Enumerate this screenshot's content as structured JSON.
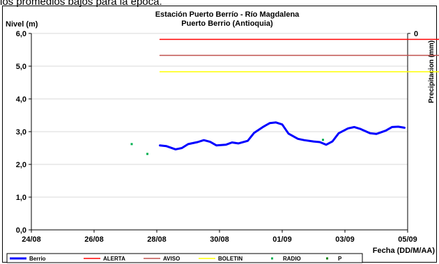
{
  "top_caption": "los promedios bajos para la época.",
  "chart_data": {
    "type": "line",
    "title": "Estación Puerto Berrío - Río Magdalena",
    "subtitle": "Puerto Berrio (Antioquia)",
    "ylabel": "Nivel (m)",
    "y2label": "Precipitacion (mm)",
    "xlabel": "Fecha (DD/M/AA)",
    "ylim": [
      0,
      6
    ],
    "yticks": [
      "0,0",
      "1,0",
      "2,0",
      "3,0",
      "4,0",
      "5,0",
      "6,0"
    ],
    "y2ticks": [
      "0"
    ],
    "xlim": [
      "24/08",
      "05/09"
    ],
    "xticks": [
      "24/08",
      "26/08",
      "28/08",
      "30/08",
      "01/09",
      "03/09",
      "05/09"
    ],
    "grid": true,
    "legend_position": "bottom",
    "series": [
      {
        "name": "Berrio",
        "color": "#0000ff",
        "style": "line",
        "points": [
          [
            28.1,
            2.58
          ],
          [
            28.3,
            2.56
          ],
          [
            28.6,
            2.46
          ],
          [
            28.8,
            2.5
          ],
          [
            29.0,
            2.62
          ],
          [
            29.3,
            2.68
          ],
          [
            29.5,
            2.74
          ],
          [
            29.7,
            2.69
          ],
          [
            29.9,
            2.58
          ],
          [
            30.2,
            2.6
          ],
          [
            30.4,
            2.67
          ],
          [
            30.6,
            2.64
          ],
          [
            30.9,
            2.72
          ],
          [
            31.1,
            2.96
          ],
          [
            31.4,
            3.15
          ],
          [
            31.6,
            3.26
          ],
          [
            31.8,
            3.28
          ],
          [
            32.0,
            3.22
          ],
          [
            32.2,
            2.94
          ],
          [
            32.5,
            2.78
          ],
          [
            32.7,
            2.74
          ],
          [
            33.0,
            2.7
          ],
          [
            33.2,
            2.68
          ],
          [
            33.4,
            2.6
          ],
          [
            33.6,
            2.7
          ],
          [
            33.8,
            2.95
          ],
          [
            34.1,
            3.1
          ],
          [
            34.3,
            3.14
          ],
          [
            34.5,
            3.08
          ],
          [
            34.8,
            2.95
          ],
          [
            35.0,
            2.93
          ],
          [
            35.3,
            3.03
          ],
          [
            35.5,
            3.14
          ],
          [
            35.7,
            3.15
          ],
          [
            35.9,
            3.12
          ]
        ]
      },
      {
        "name": "ALERTA",
        "color": "#ff0000",
        "style": "line",
        "points": [
          [
            28.1,
            5.82
          ],
          [
            37.0,
            5.82
          ]
        ]
      },
      {
        "name": "AVISO",
        "color": "#c0504d",
        "style": "line",
        "points": [
          [
            28.1,
            5.33
          ],
          [
            37.0,
            5.33
          ]
        ]
      },
      {
        "name": "BOLETIN",
        "color": "#ffff00",
        "style": "line",
        "points": [
          [
            28.1,
            4.83
          ],
          [
            37.0,
            4.83
          ]
        ]
      },
      {
        "name": "RADIO",
        "color": "#00b050",
        "style": "marker",
        "points": [
          [
            27.2,
            2.62
          ],
          [
            27.7,
            2.32
          ],
          [
            33.3,
            2.75
          ]
        ]
      },
      {
        "name": "P",
        "color": "#008000",
        "style": "marker",
        "points": []
      }
    ]
  }
}
